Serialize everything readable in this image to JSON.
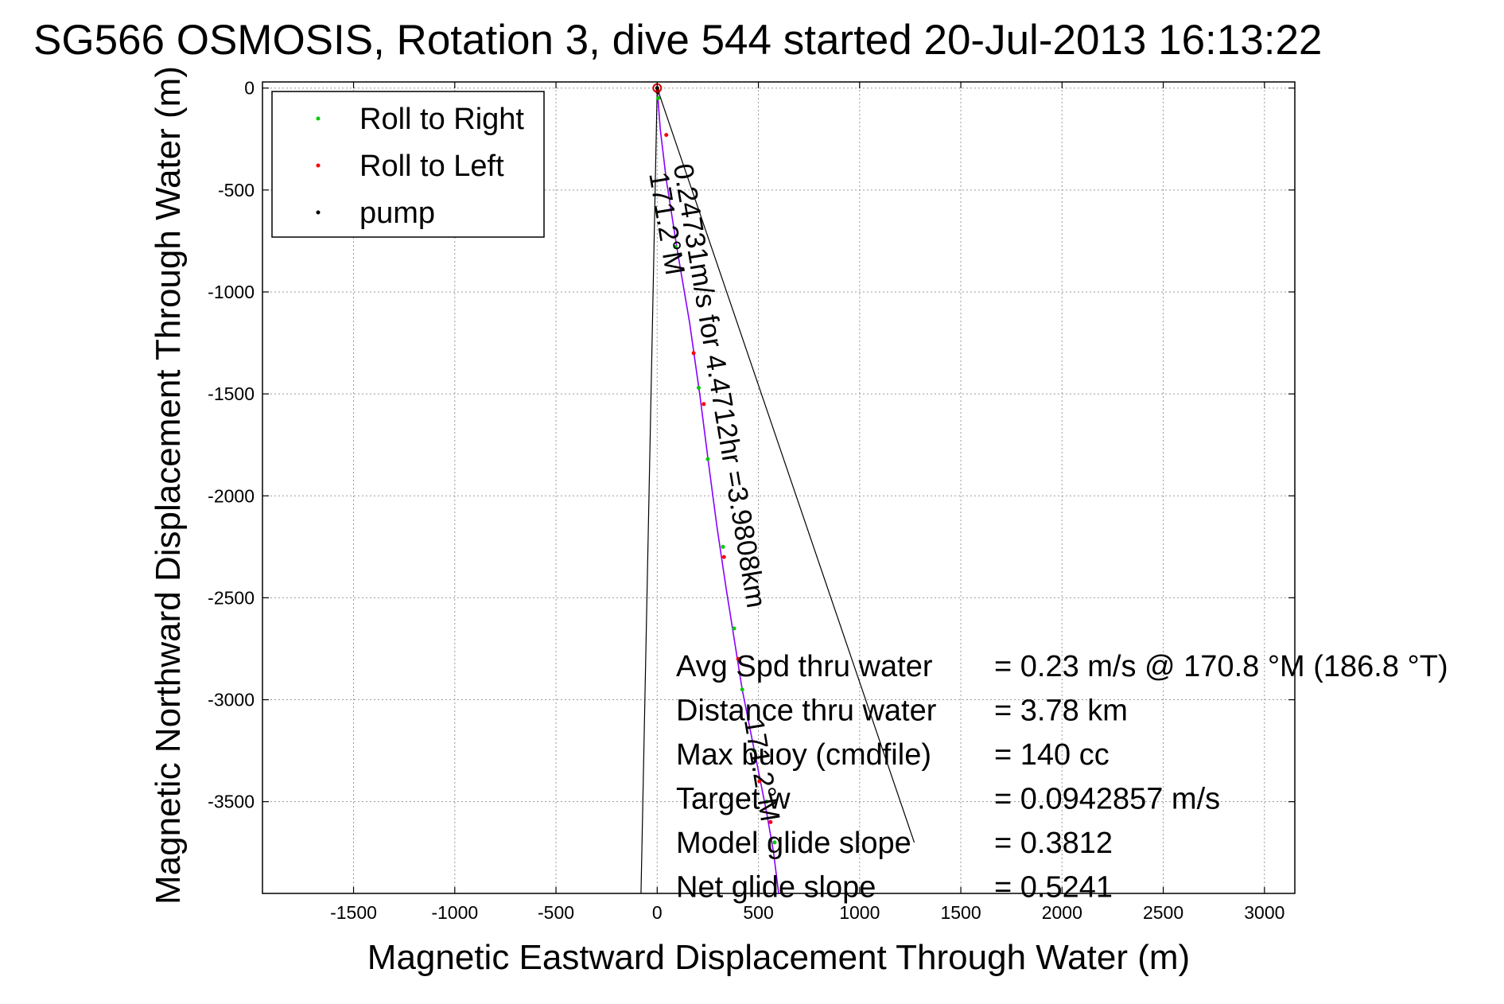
{
  "chart_data": {
    "type": "line",
    "title": "SG566 OSMOSIS, Rotation 3, dive 544 started 20-Jul-2013 16:13:22",
    "xlabel": "Magnetic Eastward Displacement Through Water (m)",
    "ylabel": "Magnetic Northward Displacement Through Water (m)",
    "xlim": [
      -1950,
      3150
    ],
    "ylim": [
      -3950,
      30
    ],
    "xticks": [
      -1500,
      -1000,
      -500,
      0,
      500,
      1000,
      1500,
      2000,
      2500,
      3000
    ],
    "xtick_labels": [
      "-1500",
      "-1000",
      "-500",
      "0",
      "500",
      "1000",
      "1500",
      "2000",
      "2500",
      "3000"
    ],
    "yticks": [
      0,
      -500,
      -1000,
      -1500,
      -2000,
      -2500,
      -3000,
      -3500
    ],
    "ytick_labels": [
      "0",
      "-500",
      "-1000",
      "-1500",
      "-2000",
      "-2500",
      "-3000",
      "-3500"
    ],
    "grid": true,
    "legend_placement": "top-left",
    "legend": [
      {
        "label": "Roll to Right",
        "color": "#00cc00"
      },
      {
        "label": "Roll to Left",
        "color": "#ff0000"
      },
      {
        "label": "pump",
        "color": "#000000"
      }
    ],
    "series": [
      {
        "name": "track",
        "color": "#8800ff",
        "x": [
          0,
          15,
          45,
          100,
          160,
          210,
          255,
          295,
          340,
          380,
          420,
          460,
          500,
          540,
          575,
          600
        ],
        "y": [
          0,
          -200,
          -450,
          -800,
          -1150,
          -1500,
          -1850,
          -2150,
          -2450,
          -2700,
          -2950,
          -3150,
          -3350,
          -3550,
          -3750,
          -3950
        ]
      }
    ],
    "roll_right_points": {
      "x": [
        5,
        90,
        205,
        250,
        325,
        380,
        420,
        480,
        540,
        580
      ],
      "y": [
        -50,
        -780,
        -1470,
        -1820,
        -2250,
        -2650,
        -2950,
        -3250,
        -3500,
        -3700
      ]
    },
    "roll_left_points": {
      "x": [
        2,
        45,
        180,
        230,
        330,
        400,
        505,
        560
      ],
      "y": [
        -10,
        -230,
        -1300,
        -1550,
        -2300,
        -2800,
        -3400,
        -3600
      ]
    },
    "pump_points": {
      "x": [
        0,
        3
      ],
      "y": [
        0,
        -20
      ]
    },
    "reference_lines": [
      {
        "x": [
          0,
          -80
        ],
        "y": [
          0,
          -3950
        ],
        "color": "#000000"
      },
      {
        "x": [
          0,
          1270
        ],
        "y": [
          0,
          -3700
        ],
        "color": "#000000"
      }
    ],
    "annotations": [
      {
        "text": "0.24731m/s for 4.4712hr =3.9808km",
        "x": 80,
        "y": -380,
        "angle": 80.5
      },
      {
        "text": "171.2°M",
        "x": -40,
        "y": -420,
        "angle": 80.5
      },
      {
        "text": "171.2°M",
        "x": 430,
        "y": -3100,
        "angle": 80.5
      }
    ],
    "stats": [
      {
        "label": "Avg Spd thru water",
        "value": "=  0.23 m/s @ 170.8 °M (186.8 °T)"
      },
      {
        "label": "Distance thru water",
        "value": "=  3.78 km"
      },
      {
        "label": "Max buoy (cmdfile)",
        "value": "= 140 cc"
      },
      {
        "label": "Target w",
        "value": "= 0.0942857 m/s"
      },
      {
        "label": "Model glide slope",
        "value": "= 0.3812"
      },
      {
        "label": "Net glide slope",
        "value": "= 0.5241"
      }
    ]
  }
}
